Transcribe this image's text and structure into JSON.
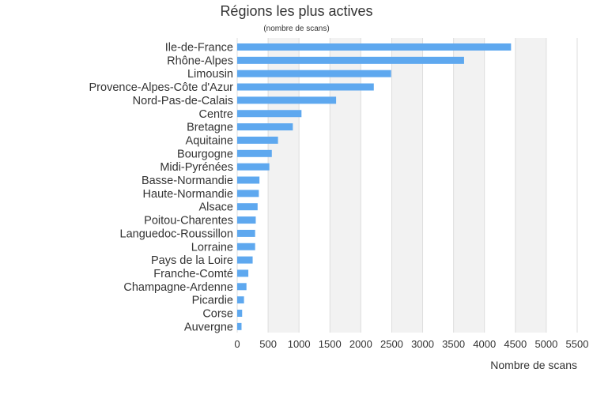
{
  "chart_data": {
    "type": "bar",
    "orientation": "horizontal",
    "title": "Régions les plus actives",
    "subtitle": "(nombre de scans)",
    "xlabel": "Nombre de scans",
    "ylabel": "",
    "xlim": [
      0,
      5500
    ],
    "xticks": [
      0,
      500,
      1000,
      1500,
      2000,
      2500,
      3000,
      3500,
      4000,
      4500,
      5000,
      5500
    ],
    "grid": true,
    "bar_color": "#5ea8ef",
    "band_color": "#f2f2f2",
    "grid_color": "#dddddd",
    "categories": [
      "Ile-de-France",
      "Rhône-Alpes",
      "Limousin",
      "Provence-Alpes-Côte d'Azur",
      "Nord-Pas-de-Calais",
      "Centre",
      "Bretagne",
      "Aquitaine",
      "Bourgogne",
      "Midi-Pyrénées",
      "Basse-Normandie",
      "Haute-Normandie",
      "Alsace",
      "Poitou-Charentes",
      "Languedoc-Roussillon",
      "Lorraine",
      "Pays de la Loire",
      "Franche-Comté",
      "Champagne-Ardenne",
      "Picardie",
      "Corse",
      "Auvergne"
    ],
    "values": [
      4430,
      3670,
      2490,
      2210,
      1600,
      1040,
      900,
      660,
      560,
      520,
      360,
      350,
      330,
      300,
      290,
      290,
      250,
      180,
      150,
      110,
      80,
      70
    ]
  }
}
